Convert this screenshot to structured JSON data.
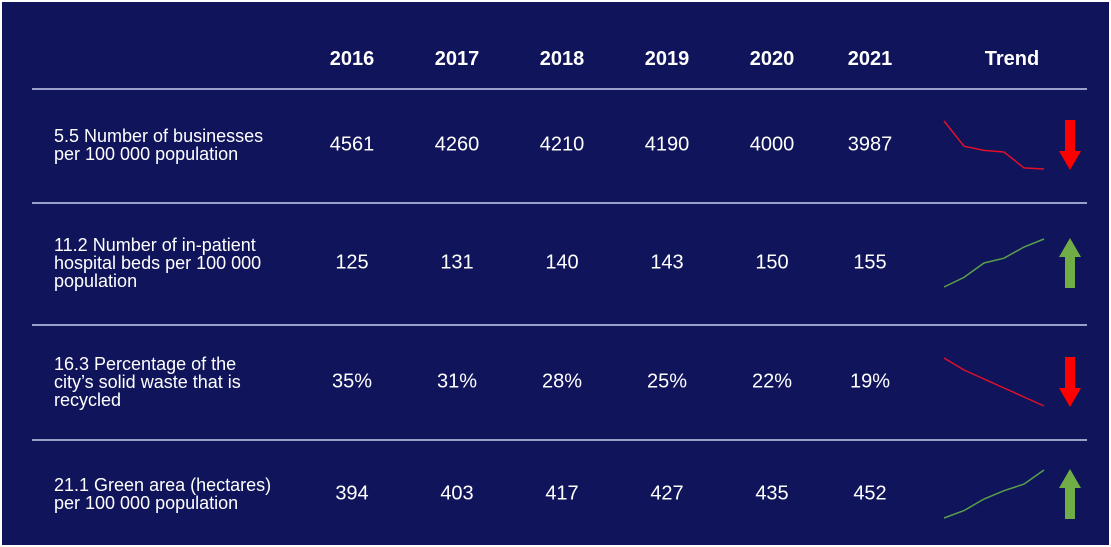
{
  "table": {
    "header": [
      "2016",
      "2017",
      "2018",
      "2019",
      "2020",
      "2021",
      "Trend"
    ],
    "rows": [
      {
        "label": "5.5 Number of businesses per 100 000 population",
        "values": [
          4561,
          4260,
          4210,
          4190,
          4000,
          3987
        ],
        "trend": "down",
        "color": "#e0102a",
        "arrow_color": "#ff0000"
      },
      {
        "label": "11.2 Number of in-patient hospital beds per 100 000 population",
        "values": [
          125,
          131,
          140,
          143,
          150,
          155
        ],
        "trend": "up",
        "color": "#5aa04a",
        "arrow_color": "#70ad47"
      },
      {
        "label": "16.3 Percentage of the city’s solid waste that is recycled",
        "values": [
          35,
          31,
          28,
          25,
          22,
          19
        ],
        "value_labels": [
          "35%",
          "31%",
          "28%",
          "25%",
          "22%",
          "19%"
        ],
        "trend": "down",
        "color": "#e0102a",
        "arrow_color": "#ff0000"
      },
      {
        "label": "21.1 Green area (hectares) per 100 000 population",
        "values": [
          394,
          403,
          417,
          427,
          435,
          452
        ],
        "trend": "up",
        "color": "#5aa04a",
        "arrow_color": "#70ad47"
      }
    ]
  }
}
